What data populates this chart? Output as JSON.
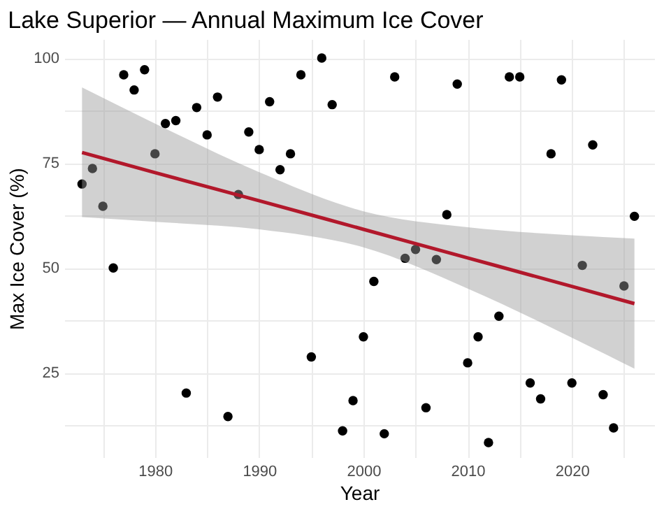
{
  "chart_data": {
    "type": "scatter",
    "title": "Lake Superior — Annual Maximum Ice Cover",
    "xlabel": "Year",
    "ylabel": "Max Ice Cover (%)",
    "xlim": [
      1971.3,
      2027.9
    ],
    "ylim": [
      4.9,
      104.5
    ],
    "xticks": [
      {
        "value": 1975,
        "label": null
      },
      1980,
      {
        "value": 1985,
        "label": null
      },
      1990,
      {
        "value": 1995,
        "label": null
      },
      2000,
      {
        "value": 2005,
        "label": null
      },
      2010,
      {
        "value": 2015,
        "label": null
      },
      2020,
      {
        "value": 2025,
        "label": null
      }
    ],
    "yticks": [
      {
        "value": 12.5,
        "label": null
      },
      25,
      {
        "value": 37.5,
        "label": null
      },
      50,
      {
        "value": 62.5,
        "label": null
      },
      75,
      {
        "value": 87.5,
        "label": null
      },
      100
    ],
    "grid": true,
    "series": [
      {
        "marker": "circle",
        "color": "#000000",
        "x": [
          1973,
          1974,
          1975,
          1976,
          1977,
          1978,
          1979,
          1980,
          1981,
          1982,
          1983,
          1984,
          1985,
          1986,
          1987,
          1988,
          1989,
          1990,
          1991,
          1992,
          1993,
          1994,
          1995,
          1996,
          1997,
          1998,
          1999,
          2000,
          2001,
          2002,
          2003,
          2004,
          2005,
          2006,
          2007,
          2008,
          2009,
          2010,
          2011,
          2012,
          2013,
          2014,
          2015,
          2016,
          2017,
          2018,
          2019,
          2020,
          2021,
          2022,
          2023,
          2024,
          2025,
          2026
        ],
        "values": [
          70,
          73.7,
          64.7,
          50,
          96,
          92.4,
          97.2,
          77.2,
          84.4,
          85.1,
          20.2,
          88.2,
          81.7,
          90.7,
          14.6,
          67.5,
          82.4,
          78.2,
          89.6,
          73.4,
          77.2,
          96,
          28.8,
          100,
          88.9,
          11.2,
          18.4,
          33.6,
          46.8,
          10.5,
          95.5,
          52.3,
          54.4,
          16.7,
          52,
          62.7,
          93.8,
          27.4,
          33.6,
          8.4,
          38.5,
          95.5,
          95.5,
          22.6,
          18.8,
          77.2,
          94.8,
          22.6,
          50.6,
          79.3,
          19.8,
          11.9,
          45.7,
          62.3
        ]
      },
      {
        "type": "line",
        "marker": "none",
        "line_style": "solid",
        "color": "#b2182b",
        "x": [
          1973,
          1980,
          1990,
          2000,
          2010,
          2020,
          2026
        ],
        "values": [
          77.5,
          72.7,
          66.0,
          59.2,
          52.4,
          45.6,
          41.5
        ],
        "lower": [
          62.1,
          61.0,
          59.2,
          54.9,
          45.1,
          33.4,
          26.0
        ],
        "upper": [
          93.0,
          84.4,
          72.8,
          63.5,
          59.7,
          57.8,
          57.0
        ]
      }
    ]
  }
}
